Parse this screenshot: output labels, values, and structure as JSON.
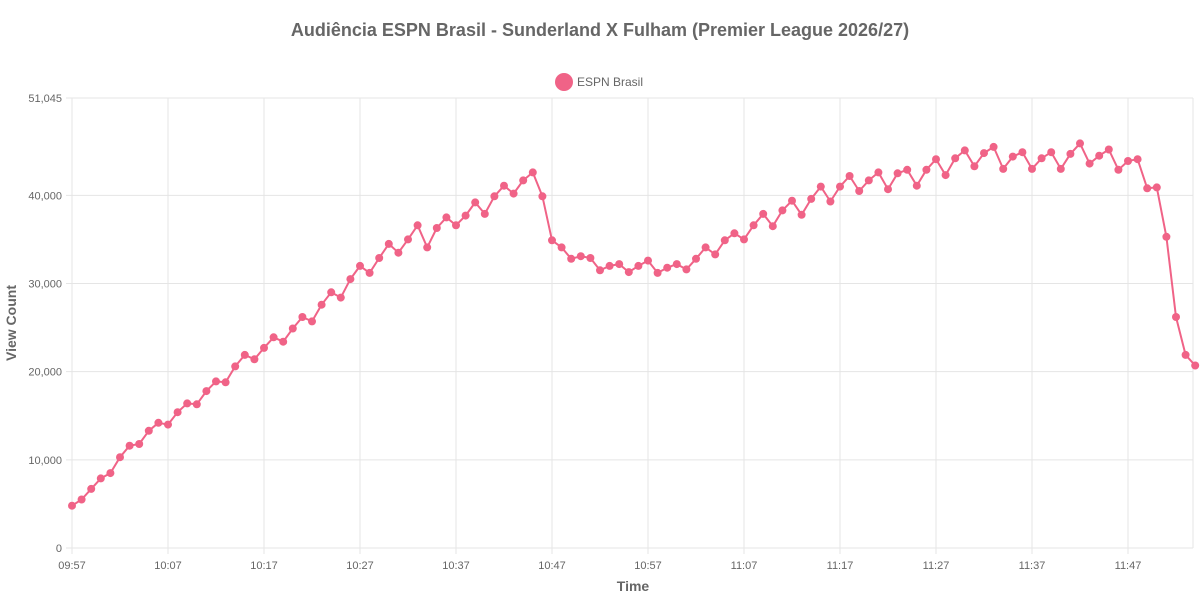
{
  "chart_data": {
    "type": "line",
    "title": "Audiência ESPN Brasil - Sunderland X Fulham (Premier League 2026/27)",
    "xlabel": "Time",
    "ylabel": "View Count",
    "ylim": [
      0,
      51045
    ],
    "y_ticks": [
      "0",
      "10,000",
      "20,000",
      "30,000",
      "40,000",
      "51,045"
    ],
    "y_tick_values": [
      0,
      10000,
      20000,
      30000,
      40000,
      51045
    ],
    "x_ticks": [
      "09:57",
      "10:07",
      "10:17",
      "10:27",
      "10:37",
      "10:47",
      "10:57",
      "11:07",
      "11:17",
      "11:27",
      "11:37",
      "11:47"
    ],
    "x_start": "09:57",
    "grid": true,
    "legend_position": "top-center",
    "series": [
      {
        "name": "ESPN Brasil",
        "color": "#f06387",
        "values": [
          4800,
          5500,
          6700,
          7900,
          8500,
          10300,
          11600,
          11800,
          13300,
          14200,
          14000,
          15400,
          16400,
          16300,
          17800,
          18900,
          18800,
          20600,
          21900,
          21400,
          22700,
          23900,
          23400,
          24900,
          26200,
          25700,
          27600,
          29000,
          28400,
          30500,
          32000,
          31200,
          32900,
          34500,
          33500,
          35000,
          36600,
          34100,
          36300,
          37500,
          36600,
          37700,
          39200,
          37900,
          39900,
          41100,
          40200,
          41700,
          42600,
          39900,
          34900,
          34100,
          32800,
          33100,
          32900,
          31500,
          32000,
          32200,
          31300,
          32000,
          32600,
          31200,
          31800,
          32200,
          31600,
          32800,
          34100,
          33300,
          34900,
          35700,
          35000,
          36600,
          37900,
          36500,
          38300,
          39400,
          37800,
          39600,
          41000,
          39300,
          41000,
          42200,
          40500,
          41700,
          42600,
          40700,
          42500,
          42900,
          41100,
          42900,
          44100,
          42300,
          44200,
          45100,
          43300,
          44800,
          45500,
          43000,
          44400,
          44900,
          43000,
          44200,
          44900,
          43000,
          44700,
          45900,
          43600,
          44500,
          45200,
          42900,
          43900,
          44100,
          40800,
          40900,
          35300,
          26200,
          21900,
          20700
        ]
      }
    ]
  }
}
